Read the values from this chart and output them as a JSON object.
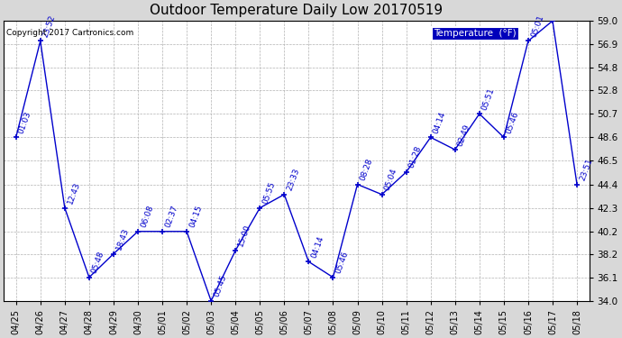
{
  "title": "Outdoor Temperature Daily Low 20170519",
  "copyright": "Copyright 2017 Cartronics.com",
  "legend_label": "Temperature  (°F)",
  "x_labels": [
    "04/25",
    "04/26",
    "04/27",
    "04/28",
    "04/29",
    "04/30",
    "05/01",
    "05/02",
    "05/03",
    "05/04",
    "05/05",
    "05/06",
    "05/07",
    "05/08",
    "05/09",
    "05/10",
    "05/11",
    "05/12",
    "05/13",
    "05/14",
    "05/15",
    "05/16",
    "05/17",
    "05/18"
  ],
  "y_values": [
    48.6,
    57.2,
    42.3,
    36.1,
    38.2,
    40.2,
    40.2,
    40.2,
    34.0,
    38.5,
    42.3,
    43.5,
    37.5,
    36.1,
    44.4,
    43.5,
    45.5,
    48.6,
    47.5,
    50.7,
    48.6,
    57.2,
    59.0,
    44.4
  ],
  "point_labels": [
    "01:03",
    "23:52",
    "12:43",
    "05:48",
    "18:43",
    "06:08",
    "02:37",
    "04:15",
    "05:45",
    "15:00",
    "05:55",
    "23:33",
    "04:14",
    "05:46",
    "08:28",
    "05:04",
    "01:28",
    "04:14",
    "02:49",
    "05:51",
    "05:46",
    "05:01",
    "",
    "23:51"
  ],
  "line_color": "#0000cc",
  "marker_color": "#0000cc",
  "fig_bg_color": "#d8d8d8",
  "plot_bg_color": "#ffffff",
  "grid_color": "#aaaaaa",
  "ylim_min": 34.0,
  "ylim_max": 59.0,
  "yticks": [
    34.0,
    36.1,
    38.2,
    40.2,
    42.3,
    44.4,
    46.5,
    48.6,
    50.7,
    52.8,
    54.8,
    56.9,
    59.0
  ],
  "title_color": "#000000",
  "label_color": "#0000cc",
  "legend_bg": "#0000bb",
  "legend_text_color": "#ffffff",
  "label_fontsize": 6.5,
  "label_rotation": 70
}
